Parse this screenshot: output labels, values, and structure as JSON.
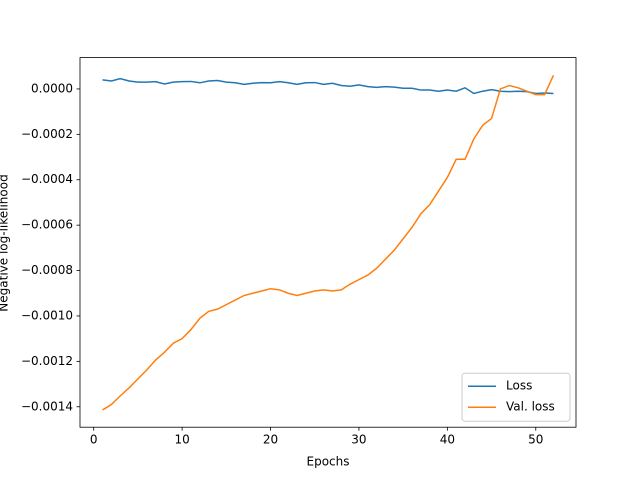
{
  "chart_data": {
    "type": "line",
    "xlabel": "Epochs",
    "ylabel": "Negative log-likelihood",
    "x": [
      1,
      2,
      3,
      4,
      5,
      6,
      7,
      8,
      9,
      10,
      11,
      12,
      13,
      14,
      15,
      16,
      17,
      18,
      19,
      20,
      21,
      22,
      23,
      24,
      25,
      26,
      27,
      28,
      29,
      30,
      31,
      32,
      33,
      34,
      35,
      36,
      37,
      38,
      39,
      40,
      41,
      42,
      43,
      44,
      45,
      46,
      47,
      48,
      49,
      50,
      51,
      52
    ],
    "series": [
      {
        "name": "Loss",
        "color": "#1f77b4",
        "values": [
          4e-05,
          3.5e-05,
          4.5e-05,
          3.5e-05,
          3e-05,
          3e-05,
          3.2e-05,
          2.2e-05,
          3e-05,
          3.2e-05,
          3.3e-05,
          2.7e-05,
          3.5e-05,
          3.7e-05,
          3e-05,
          2.7e-05,
          2e-05,
          2.5e-05,
          2.8e-05,
          2.7e-05,
          3.2e-05,
          2.7e-05,
          2e-05,
          2.7e-05,
          2.8e-05,
          2e-05,
          2.5e-05,
          1.5e-05,
          1.2e-05,
          1.8e-05,
          1e-05,
          7e-06,
          1e-05,
          8e-06,
          3e-06,
          3e-06,
          -5e-06,
          -5e-06,
          -1e-05,
          -5e-06,
          -1e-05,
          5e-06,
          -2e-05,
          -1e-05,
          -3e-06,
          -1e-05,
          -1.2e-05,
          -1e-05,
          -1.2e-05,
          -2e-05,
          -1.8e-05,
          -2e-05
        ]
      },
      {
        "name": "Val. loss",
        "color": "#ff7f0e",
        "values": [
          -0.001414,
          -0.00139,
          -0.001352,
          -0.001317,
          -0.001277,
          -0.001238,
          -0.001194,
          -0.00116,
          -0.00112,
          -0.0011,
          -0.00106,
          -0.00101,
          -0.00098,
          -0.00097,
          -0.00095,
          -0.00093,
          -0.00091,
          -0.0009,
          -0.00089,
          -0.00088,
          -0.000885,
          -0.0009,
          -0.00091,
          -0.0009,
          -0.00089,
          -0.000885,
          -0.00089,
          -0.000885,
          -0.00086,
          -0.00084,
          -0.00082,
          -0.00079,
          -0.00075,
          -0.00071,
          -0.00066,
          -0.00061,
          -0.00055,
          -0.00051,
          -0.00045,
          -0.00039,
          -0.00031,
          -0.00031,
          -0.00022,
          -0.00016,
          -0.00013,
          0.0,
          1.5e-05,
          5e-06,
          -1e-05,
          -2.5e-05,
          -2.5e-05,
          6e-05
        ]
      }
    ],
    "xlim": [
      -1.55,
      54.55
    ],
    "xticks": [
      0,
      10,
      20,
      30,
      40,
      50
    ],
    "ylim": [
      -0.00149,
      0.000138
    ],
    "yticks": [
      {
        "value": -0.0014,
        "label": "−0.0014"
      },
      {
        "value": -0.0012,
        "label": "−0.0012"
      },
      {
        "value": -0.001,
        "label": "−0.0010"
      },
      {
        "value": -0.0008,
        "label": "−0.0008"
      },
      {
        "value": -0.0006,
        "label": "−0.0006"
      },
      {
        "value": -0.0004,
        "label": "−0.0004"
      },
      {
        "value": -0.0002,
        "label": "−0.0002"
      },
      {
        "value": 0,
        "label": "0.0000"
      }
    ],
    "grid": false,
    "legend": "lower right"
  }
}
